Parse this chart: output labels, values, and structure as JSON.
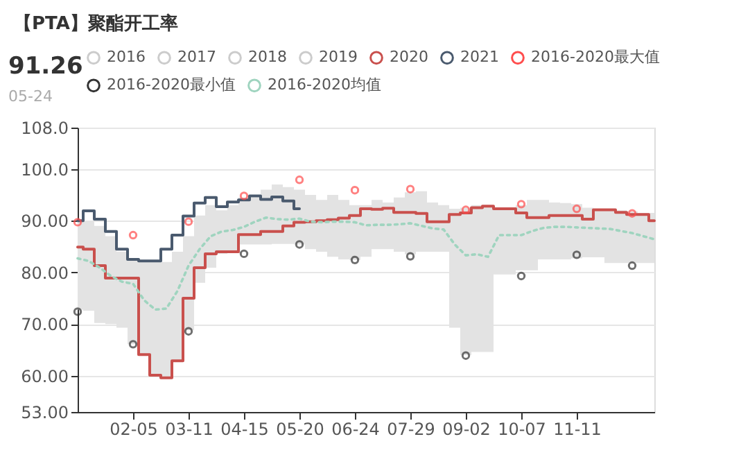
{
  "chart_data": {
    "type": "line",
    "title": "【PTA】聚酯开工率",
    "categories": [
      null,
      null,
      null,
      null,
      null,
      "02-05",
      null,
      null,
      null,
      null,
      "03-11",
      null,
      null,
      null,
      null,
      "04-15",
      null,
      null,
      null,
      null,
      "05-20",
      null,
      null,
      null,
      null,
      "06-24",
      null,
      null,
      null,
      null,
      "07-29",
      null,
      null,
      null,
      null,
      "09-02",
      null,
      null,
      null,
      null,
      "10-07",
      null,
      null,
      null,
      null,
      "11-11",
      null,
      null,
      null,
      null,
      null,
      null,
      null
    ],
    "ylim": [
      53,
      108
    ],
    "yticks": [
      {
        "value": 53,
        "label": "53.00"
      },
      {
        "value": 60,
        "label": "60.00"
      },
      {
        "value": 70,
        "label": "70.00"
      },
      {
        "value": 80,
        "label": "80.00"
      },
      {
        "value": 90,
        "label": "90.00"
      },
      {
        "value": 100,
        "label": "100.0"
      },
      {
        "value": 108,
        "label": "108.0"
      }
    ],
    "grid": "y",
    "legend": "top",
    "annotations": [
      "91.26",
      "05-24"
    ],
    "series": [
      {
        "name": "2016",
        "color": "#cccccc",
        "values": [
          null,
          null,
          null,
          null,
          null,
          null,
          null,
          null,
          null,
          null,
          null,
          null,
          null,
          null,
          null,
          null,
          null,
          null,
          null,
          null,
          null,
          null,
          null,
          null,
          null,
          null,
          null,
          null,
          null,
          null,
          null,
          null,
          null,
          null,
          null,
          null,
          null,
          null,
          null,
          null,
          null,
          null,
          null,
          null,
          null,
          null,
          null,
          null,
          null,
          null,
          null,
          null,
          null
        ]
      },
      {
        "name": "2017",
        "color": "#cccccc",
        "values": [
          null,
          null,
          null,
          null,
          null,
          null,
          null,
          null,
          null,
          null,
          null,
          null,
          null,
          null,
          null,
          null,
          null,
          null,
          null,
          null,
          null,
          null,
          null,
          null,
          null,
          null,
          null,
          null,
          null,
          null,
          null,
          null,
          null,
          null,
          null,
          null,
          null,
          null,
          null,
          null,
          null,
          null,
          null,
          null,
          null,
          null,
          null,
          null,
          null,
          null,
          null,
          null,
          null
        ]
      },
      {
        "name": "2018",
        "color": "#cccccc",
        "values": [
          null,
          null,
          null,
          null,
          null,
          null,
          null,
          null,
          null,
          null,
          null,
          null,
          null,
          null,
          null,
          null,
          null,
          null,
          null,
          null,
          null,
          null,
          null,
          null,
          null,
          null,
          null,
          null,
          null,
          null,
          null,
          null,
          null,
          null,
          null,
          null,
          null,
          null,
          null,
          null,
          null,
          null,
          null,
          null,
          null,
          null,
          null,
          null,
          null,
          null,
          null,
          null,
          null
        ]
      },
      {
        "name": "2019",
        "color": "#cccccc",
        "values": [
          null,
          null,
          null,
          null,
          null,
          null,
          null,
          null,
          null,
          null,
          null,
          null,
          null,
          null,
          null,
          null,
          null,
          null,
          null,
          null,
          null,
          null,
          null,
          null,
          null,
          null,
          null,
          null,
          null,
          null,
          null,
          null,
          null,
          null,
          null,
          null,
          null,
          null,
          null,
          null,
          null,
          null,
          null,
          null,
          null,
          null,
          null,
          null,
          null,
          null,
          null,
          null,
          null
        ]
      },
      {
        "name": "2020",
        "type": "step",
        "color": "#c9504d",
        "values": [
          84.9,
          84.5,
          81.3,
          78.9,
          78.9,
          78.9,
          64.1,
          60.1,
          59.6,
          62.9,
          75.0,
          80.9,
          83.6,
          84.0,
          84.0,
          87.3,
          87.3,
          87.9,
          87.9,
          89.0,
          89.7,
          89.8,
          90.0,
          90.2,
          90.5,
          91.0,
          92.3,
          92.2,
          92.4,
          91.6,
          91.6,
          91.4,
          89.8,
          89.8,
          91.2,
          91.5,
          92.5,
          92.8,
          92.3,
          92.3,
          91.5,
          90.6,
          90.6,
          91.0,
          91.0,
          91.0,
          90.3,
          92.1,
          92.1,
          91.6,
          91.2,
          91.2,
          90.0
        ]
      },
      {
        "name": "2021",
        "type": "step",
        "color": "#4a5a6e",
        "values": [
          90.0,
          91.9,
          90.3,
          87.9,
          84.5,
          82.5,
          82.2,
          82.2,
          84.5,
          87.2,
          90.9,
          93.4,
          94.5,
          92.7,
          93.6,
          94.0,
          94.8,
          94.1,
          94.6,
          93.8,
          92.3,
          null,
          null,
          null,
          null,
          null,
          null,
          null,
          null,
          null,
          null,
          null,
          null,
          null,
          null,
          null,
          null,
          null,
          null,
          null,
          null,
          null,
          null,
          null,
          null,
          null,
          null,
          null,
          null,
          null,
          null,
          null,
          null
        ]
      },
      {
        "name": "2016-2020最大值",
        "type": "scatter",
        "color": "#ff4d4d",
        "values": [
          89.7,
          null,
          null,
          null,
          null,
          87.2,
          null,
          null,
          null,
          null,
          89.8,
          null,
          null,
          null,
          null,
          94.8,
          null,
          null,
          null,
          null,
          97.9,
          null,
          null,
          null,
          null,
          95.9,
          null,
          null,
          null,
          null,
          96.1,
          null,
          null,
          null,
          null,
          92.1,
          null,
          null,
          null,
          null,
          93.2,
          null,
          null,
          null,
          null,
          92.3,
          null,
          null,
          null,
          null,
          91.4,
          null,
          null
        ]
      },
      {
        "name": "2016-2020最小值",
        "type": "scatter",
        "color": "#333333",
        "values": [
          72.4,
          null,
          null,
          null,
          null,
          66.1,
          null,
          null,
          null,
          null,
          68.6,
          null,
          null,
          null,
          null,
          83.6,
          null,
          null,
          null,
          null,
          85.4,
          null,
          null,
          null,
          null,
          82.4,
          null,
          null,
          null,
          null,
          83.1,
          null,
          null,
          null,
          null,
          63.9,
          null,
          null,
          null,
          null,
          79.3,
          null,
          null,
          null,
          null,
          83.4,
          null,
          null,
          null,
          null,
          81.3,
          null,
          null
        ]
      },
      {
        "name": "2016-2020均值",
        "type": "line",
        "line_style": "dotted",
        "color": "#9fd4bf",
        "values": [
          82.7,
          82.2,
          80.9,
          79.3,
          78.2,
          77.8,
          74.6,
          72.8,
          73.0,
          76.4,
          81.3,
          84.5,
          87.0,
          87.9,
          88.2,
          88.8,
          89.8,
          90.6,
          90.3,
          90.2,
          90.4,
          89.8,
          89.7,
          89.8,
          89.8,
          89.7,
          89.1,
          89.2,
          89.2,
          89.3,
          89.5,
          89.0,
          88.5,
          88.3,
          85.4,
          83.3,
          83.5,
          83.0,
          87.2,
          87.2,
          87.2,
          88.0,
          88.6,
          88.8,
          88.8,
          88.7,
          88.6,
          88.5,
          88.4,
          88.0,
          87.6,
          87.0,
          86.4
        ],
        "lower": [
          72.8,
          72.6,
          70.2,
          70.0,
          69.3,
          66.1,
          64.1,
          60.1,
          59.6,
          63.0,
          68.8,
          78.0,
          80.9,
          83.6,
          84.0,
          85.4,
          85.4,
          85.4,
          85.5,
          85.5,
          85.4,
          84.5,
          84.0,
          83.0,
          82.5,
          82.4,
          83.0,
          84.5,
          84.5,
          84.0,
          83.5,
          84.0,
          84.0,
          84.0,
          69.3,
          64.0,
          64.6,
          64.6,
          79.6,
          79.6,
          80.4,
          80.4,
          82.5,
          82.5,
          82.5,
          82.7,
          82.9,
          82.9,
          81.8,
          81.8,
          81.8,
          81.8,
          81.8
        ],
        "upper": [
          90.0,
          90.0,
          89.0,
          87.0,
          84.0,
          82.5,
          82.0,
          82.0,
          82.0,
          84.0,
          87.0,
          91.0,
          93.0,
          92.0,
          93.0,
          94.5,
          94.5,
          96.0,
          97.0,
          96.5,
          96.0,
          95.0,
          94.0,
          95.0,
          94.0,
          93.0,
          93.0,
          94.0,
          93.5,
          94.5,
          95.5,
          95.7,
          93.5,
          93.0,
          92.3,
          92.5,
          93.0,
          93.0,
          92.5,
          92.5,
          93.0,
          94.0,
          94.0,
          93.5,
          93.4,
          93.2,
          92.5,
          92.2,
          92.2,
          92.0,
          91.8,
          91.5,
          91.5
        ]
      }
    ]
  }
}
